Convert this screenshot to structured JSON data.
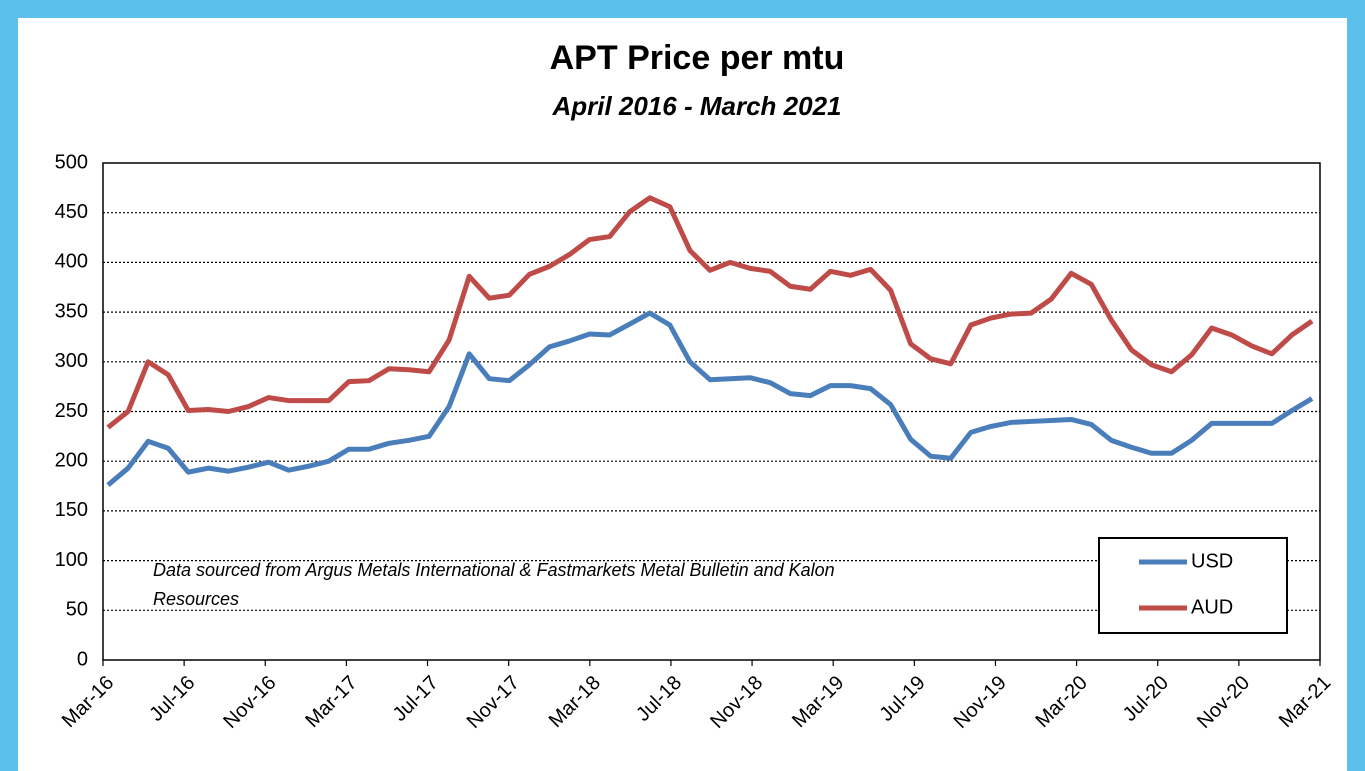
{
  "chart_data": {
    "type": "line",
    "title": "APT Price per mtu",
    "subtitle": "April 2016 - March 2021",
    "annotation": [
      "Data sourced from Argus Metals International & Fastmarkets Metal Bulletin and Kalon",
      "Resources"
    ],
    "categories": [
      "Mar-16",
      null,
      null,
      null,
      "Jul-16",
      null,
      null,
      null,
      "Nov-16",
      null,
      null,
      null,
      "Mar-17",
      null,
      null,
      null,
      "Jul-17",
      null,
      null,
      null,
      "Nov-17",
      null,
      null,
      null,
      "Mar-18",
      null,
      null,
      null,
      "Jul-18",
      null,
      null,
      null,
      "Nov-18",
      null,
      null,
      null,
      "Mar-19",
      null,
      null,
      null,
      "Jul-19",
      null,
      null,
      null,
      "Nov-19",
      null,
      null,
      null,
      "Mar-20",
      null,
      null,
      null,
      "Jul-20",
      null,
      null,
      null,
      "Nov-20",
      null,
      null,
      null,
      "Mar-21"
    ],
    "series": [
      {
        "name": "USD",
        "color": "#4a7ebb",
        "values": [
          176,
          193,
          220,
          213,
          189,
          193,
          190,
          194,
          199,
          191,
          195,
          200,
          212,
          212,
          218,
          221,
          225,
          255,
          308,
          283,
          281,
          297,
          315,
          321,
          328,
          327,
          338,
          349,
          337,
          300,
          282,
          283,
          284,
          279,
          268,
          266,
          276,
          276,
          273,
          257,
          222,
          205,
          203,
          229,
          235,
          239,
          240,
          241,
          242,
          237,
          221,
          214,
          208,
          208,
          221,
          238,
          238,
          238,
          238,
          251,
          263
        ]
      },
      {
        "name": "AUD",
        "color": "#be4b48",
        "values": [
          234,
          250,
          300,
          287,
          251,
          252,
          250,
          255,
          264,
          261,
          261,
          261,
          280,
          281,
          293,
          292,
          290,
          322,
          386,
          364,
          367,
          388,
          396,
          408,
          423,
          426,
          451,
          465,
          456,
          412,
          392,
          400,
          394,
          391,
          376,
          373,
          391,
          387,
          393,
          372,
          318,
          303,
          298,
          337,
          344,
          348,
          349,
          363,
          389,
          378,
          342,
          312,
          297,
          290,
          307,
          334,
          327,
          316,
          308,
          327,
          341
        ]
      }
    ],
    "ylim": [
      0,
      500
    ],
    "yticks": [
      0,
      50,
      100,
      150,
      200,
      250,
      300,
      350,
      400,
      450,
      500
    ],
    "grid": true,
    "legend": "lower right"
  }
}
